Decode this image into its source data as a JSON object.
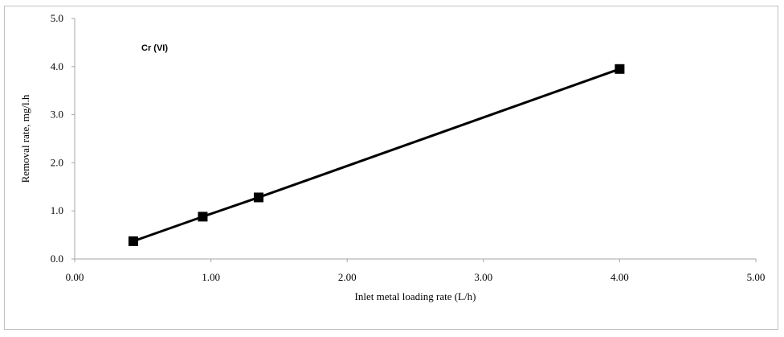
{
  "chart_data": {
    "type": "line",
    "annotation": "Cr (VI)",
    "xlabel": "Inlet metal loading rate (L/h)",
    "ylabel": "Removal rate, mg/l.h",
    "xlim": [
      0,
      5
    ],
    "ylim": [
      0,
      5
    ],
    "x_ticks": [
      "0.00",
      "1.00",
      "2.00",
      "3.00",
      "4.00",
      "5.00"
    ],
    "y_ticks": [
      "0.0",
      "1.0",
      "2.0",
      "3.0",
      "4.0",
      "5.0"
    ],
    "grid": false,
    "legend": "none",
    "series": [
      {
        "marker": "square",
        "color": "#000000",
        "x": [
          0.43,
          0.94,
          1.35,
          4.0
        ],
        "y": [
          0.37,
          0.88,
          1.28,
          3.95
        ]
      }
    ]
  }
}
